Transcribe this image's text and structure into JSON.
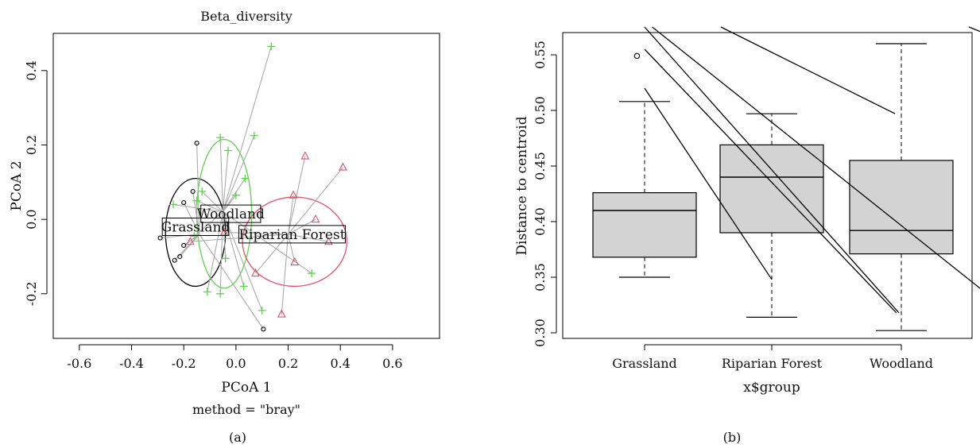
{
  "chart_data": [
    {
      "type": "scatter",
      "panel_label": "(a)",
      "title": "Beta_diversity",
      "xlabel": "PCoA 1",
      "subtitle": "method = \"bray\"",
      "ylabel": "PCoA 2",
      "xlim": [
        -0.7,
        0.78
      ],
      "ylim": [
        -0.32,
        0.5
      ],
      "xticks": [
        -0.6,
        -0.4,
        -0.2,
        0.0,
        0.2,
        0.4,
        0.6
      ],
      "xtick_labels": [
        "-0.6",
        "-0.4",
        "-0.2",
        "0.0",
        "0.2",
        "0.4",
        "0.6"
      ],
      "yticks": [
        -0.2,
        0.0,
        0.2,
        0.4
      ],
      "ytick_labels": [
        "-0.2",
        "0.0",
        "0.2",
        "0.4"
      ],
      "grid": false,
      "spider_color": "#aaaaaa",
      "groups": [
        {
          "name": "Grassland",
          "color": "#000000",
          "marker": "circle",
          "label_pos": {
            "x": -0.155,
            "y": -0.02
          },
          "centroid": {
            "x": -0.14,
            "y": -0.04
          },
          "ellipse": {
            "cx": -0.155,
            "cy": -0.035,
            "rx": 0.115,
            "ry": 0.145
          },
          "points": [
            {
              "x": -0.15,
              "y": 0.205
            },
            {
              "x": -0.165,
              "y": 0.075
            },
            {
              "x": -0.2,
              "y": 0.045
            },
            {
              "x": -0.29,
              "y": -0.05
            },
            {
              "x": -0.2,
              "y": -0.07
            },
            {
              "x": -0.215,
              "y": -0.1
            },
            {
              "x": -0.235,
              "y": -0.11
            },
            {
              "x": 0.105,
              "y": -0.295
            }
          ]
        },
        {
          "name": "Woodland",
          "color": "#61d04f",
          "marker": "plus",
          "label_pos": {
            "x": -0.02,
            "y": 0.015
          },
          "centroid": {
            "x": -0.05,
            "y": 0.02
          },
          "ellipse": {
            "cx": -0.045,
            "cy": 0.015,
            "rx": 0.105,
            "ry": 0.2
          },
          "points": [
            {
              "x": 0.135,
              "y": 0.465
            },
            {
              "x": 0.07,
              "y": 0.225
            },
            {
              "x": -0.06,
              "y": 0.22
            },
            {
              "x": -0.03,
              "y": 0.185
            },
            {
              "x": 0.035,
              "y": 0.11
            },
            {
              "x": -0.13,
              "y": 0.075
            },
            {
              "x": -0.15,
              "y": 0.05
            },
            {
              "x": 0.0,
              "y": 0.065
            },
            {
              "x": -0.24,
              "y": 0.04
            },
            {
              "x": -0.16,
              "y": -0.045
            },
            {
              "x": -0.04,
              "y": -0.105
            },
            {
              "x": 0.03,
              "y": -0.18
            },
            {
              "x": -0.06,
              "y": -0.2
            },
            {
              "x": -0.11,
              "y": -0.195
            },
            {
              "x": 0.1,
              "y": -0.245
            },
            {
              "x": 0.29,
              "y": -0.145
            }
          ]
        },
        {
          "name": "Riparian Forest",
          "color": "#df536b",
          "marker": "triangle",
          "label_pos": {
            "x": 0.215,
            "y": -0.04
          },
          "centroid": {
            "x": 0.2,
            "y": -0.04
          },
          "ellipse": {
            "cx": 0.225,
            "cy": -0.06,
            "rx": 0.2,
            "ry": 0.12
          },
          "points": [
            {
              "x": 0.41,
              "y": 0.14
            },
            {
              "x": 0.265,
              "y": 0.17
            },
            {
              "x": 0.22,
              "y": 0.065
            },
            {
              "x": 0.305,
              "y": 0.0
            },
            {
              "x": 0.355,
              "y": -0.06
            },
            {
              "x": 0.225,
              "y": -0.115
            },
            {
              "x": 0.075,
              "y": -0.145
            },
            {
              "x": 0.175,
              "y": -0.255
            },
            {
              "x": -0.045,
              "y": -0.035
            },
            {
              "x": -0.175,
              "y": -0.06
            }
          ]
        }
      ]
    },
    {
      "type": "box",
      "panel_label": "(b)",
      "xlabel": "x$group",
      "ylabel": "Distance to centroid",
      "ylim": [
        0.295,
        0.57
      ],
      "yticks": [
        0.3,
        0.35,
        0.4,
        0.45,
        0.5,
        0.55
      ],
      "ytick_labels": [
        "0.30",
        "0.35",
        "0.40",
        "0.45",
        "0.50",
        "0.55"
      ],
      "categories": [
        "Grassland",
        "Riparian Forest",
        "Woodland"
      ],
      "box_fill": "#d3d3d3",
      "boxes": [
        {
          "min": 0.35,
          "q1": 0.368,
          "median": 0.41,
          "q3": 0.426,
          "max": 0.508,
          "outliers": [
            0.549
          ]
        },
        {
          "min": 0.314,
          "q1": 0.39,
          "median": 0.44,
          "q3": 0.469,
          "max": 0.497,
          "outliers": []
        },
        {
          "min": 0.302,
          "q1": 0.371,
          "median": 0.392,
          "q3": 0.455,
          "max": 0.56,
          "outliers": []
        }
      ],
      "overlay_lines": [
        {
          "x1": 0.0,
          "y1": 0.52,
          "x2": 1.0,
          "y2": 0.348
        },
        {
          "x1": 0.0,
          "y1": 0.555,
          "x2": 1.98,
          "y2": 0.318
        },
        {
          "x1": 0.0,
          "y1": 0.575,
          "x2": 2.0,
          "y2": 0.318
        },
        {
          "x1": 0.06,
          "y1": 0.575,
          "x2": 3.0,
          "y2": 0.307
        },
        {
          "x1": 0.6,
          "y1": 0.575,
          "x2": 1.97,
          "y2": 0.497
        },
        {
          "x1": 2.55,
          "y1": 0.575,
          "x2": 2.97,
          "y2": 0.556
        }
      ]
    }
  ]
}
